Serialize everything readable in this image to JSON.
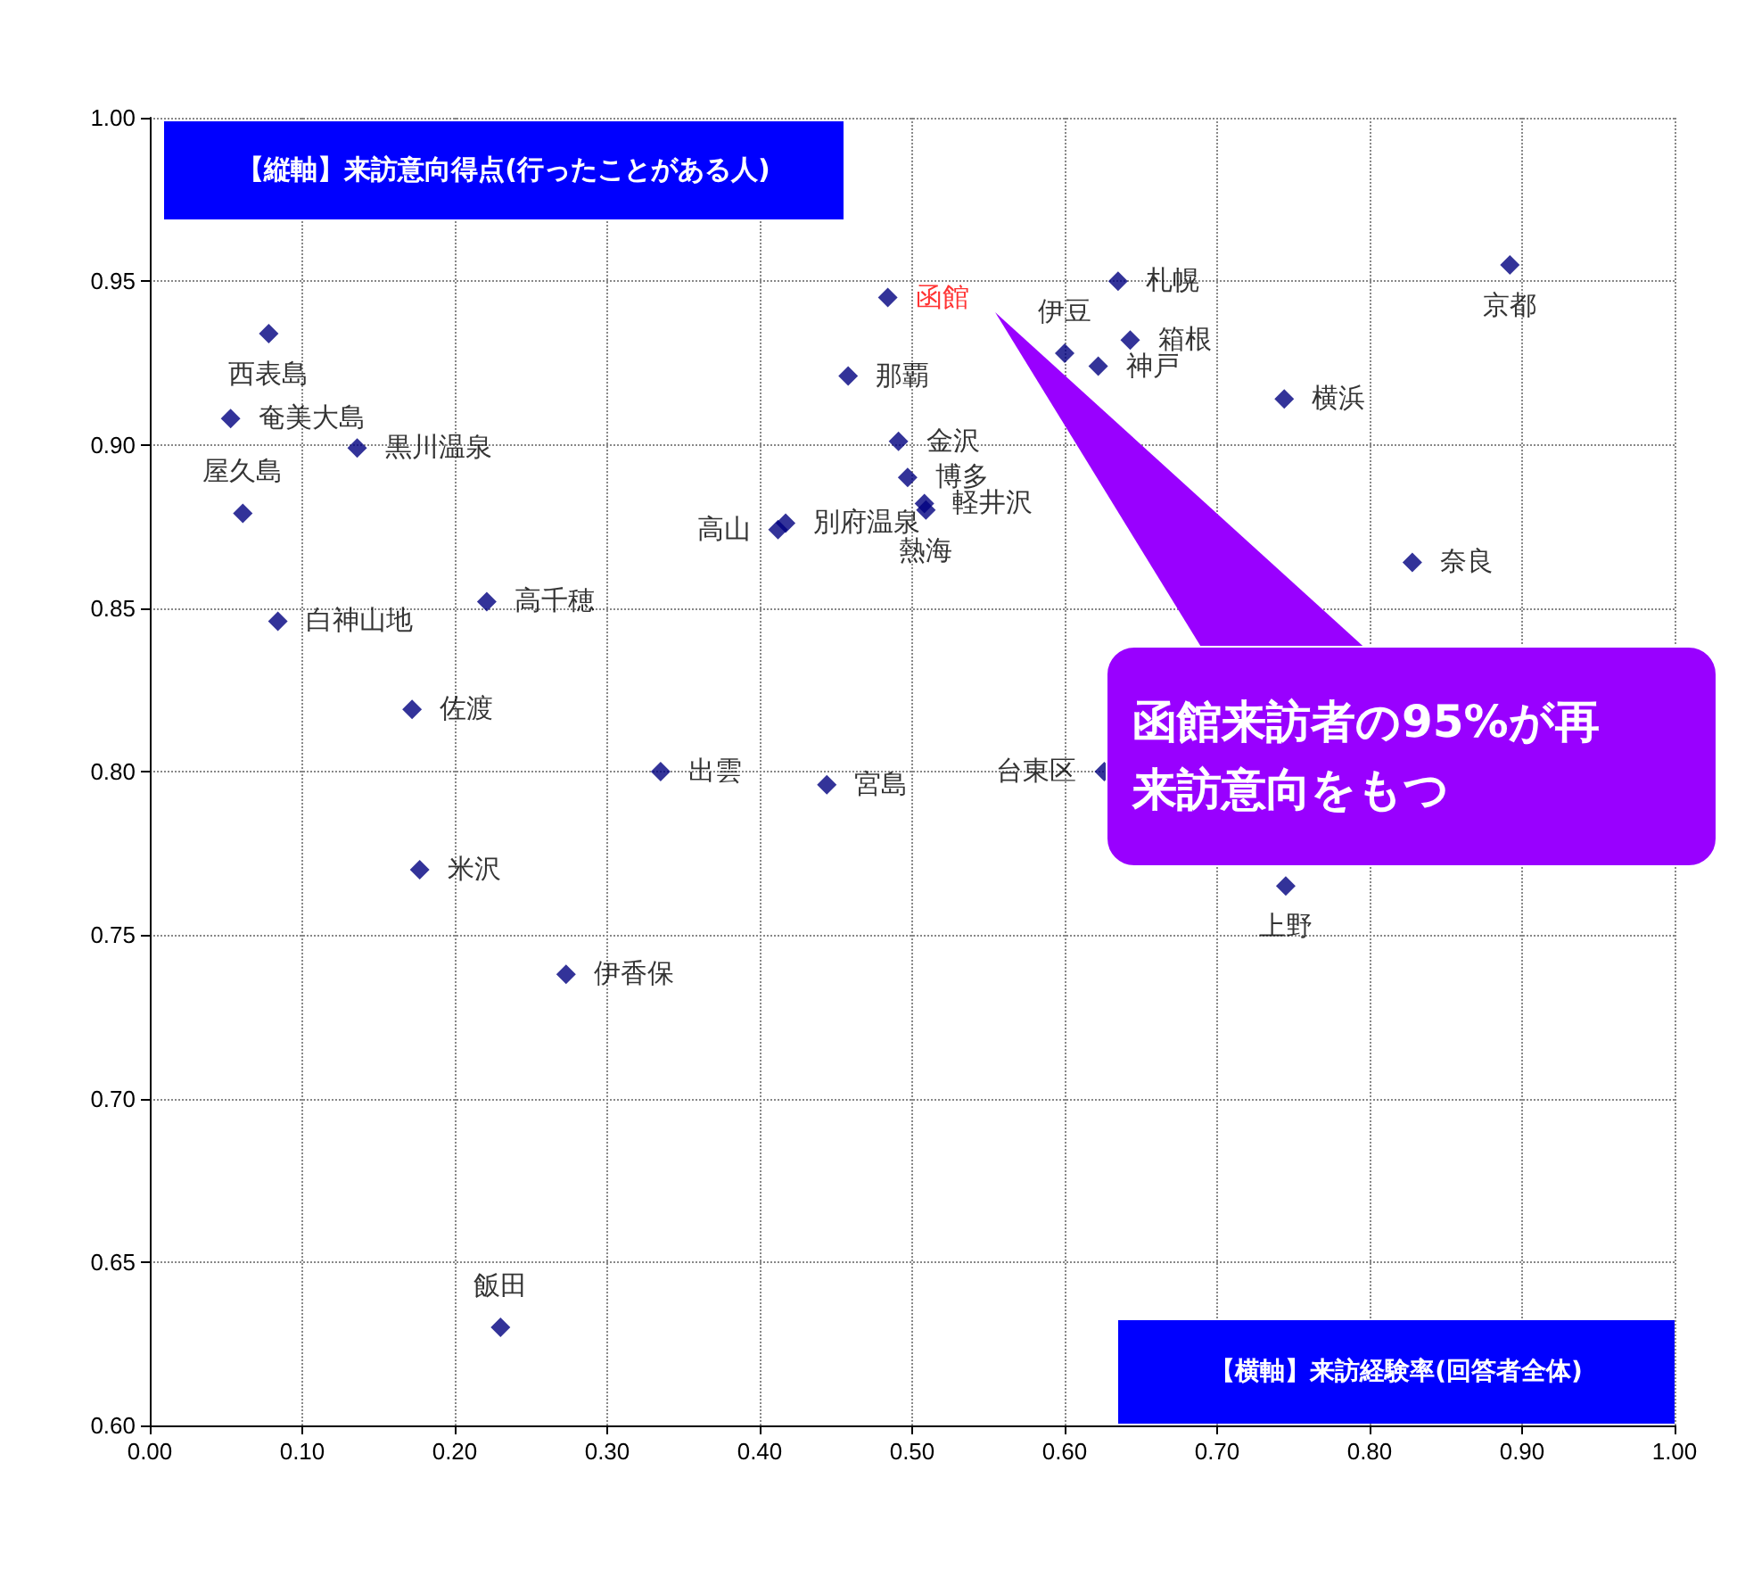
{
  "chart_data": {
    "type": "scatter",
    "xlabel": "【横軸】来訪経験率(回答者全体)",
    "ylabel": "【縦軸】来訪意向得点(行ったことがある人)",
    "x": [
      0.892,
      0.635,
      0.643,
      0.6,
      0.622,
      0.484,
      0.458,
      0.491,
      0.497,
      0.508,
      0.509,
      0.412,
      0.417,
      0.744,
      0.828,
      0.078,
      0.053,
      0.136,
      0.061,
      0.084,
      0.221,
      0.172,
      0.177,
      0.273,
      0.23,
      0.335,
      0.444,
      0.626,
      0.745
    ],
    "series": [
      {
        "color": "#000080",
        "values": [
          0.955,
          0.95,
          0.932,
          0.928,
          0.924,
          0.945,
          0.921,
          0.901,
          0.89,
          0.882,
          0.88,
          0.874,
          0.876,
          0.914,
          0.864,
          0.934,
          0.908,
          0.899,
          0.879,
          0.846,
          0.852,
          0.819,
          0.77,
          0.738,
          0.63,
          0.8,
          0.796,
          0.8,
          0.765
        ],
        "value_labels": [
          "京都",
          "札幌",
          "箱根",
          "伊豆",
          "神戸",
          "函館",
          "那覇",
          "金沢",
          "博多",
          "軽井沢",
          "熱海",
          "高山",
          "別府温泉",
          "横浜",
          "奈良",
          "西表島",
          "奄美大島",
          "黒川温泉",
          "屋久島",
          "白神山地",
          "高千穂",
          "佐渡",
          "米沢",
          "伊香保",
          "飯田",
          "出雲",
          "宮島",
          "台東区",
          "上野"
        ]
      }
    ],
    "marker": "diamond",
    "grid": true,
    "xlim": [
      0,
      1
    ],
    "xticks": [
      {
        "value": 0,
        "label": "0.00"
      },
      {
        "value": 0.1,
        "label": "0.10"
      },
      {
        "value": 0.2,
        "label": "0.20"
      },
      {
        "value": 0.3,
        "label": "0.30"
      },
      {
        "value": 0.4,
        "label": "0.40"
      },
      {
        "value": 0.5,
        "label": "0.50"
      },
      {
        "value": 0.6,
        "label": "0.60"
      },
      {
        "value": 0.7,
        "label": "0.70"
      },
      {
        "value": 0.8,
        "label": "0.80"
      },
      {
        "value": 0.9,
        "label": "0.90"
      },
      {
        "value": 1,
        "label": "1.00"
      }
    ],
    "ylim": [
      0.6,
      1
    ],
    "yticks": [
      {
        "value": 0.6,
        "label": "0.60"
      },
      {
        "value": 0.65,
        "label": "0.65"
      },
      {
        "value": 0.7,
        "label": "0.70"
      },
      {
        "value": 0.75,
        "label": "0.75"
      },
      {
        "value": 0.8,
        "label": "0.80"
      },
      {
        "value": 0.85,
        "label": "0.85"
      },
      {
        "value": 0.9,
        "label": "0.90"
      },
      {
        "value": 0.95,
        "label": "0.95"
      },
      {
        "value": 1,
        "label": "1.00"
      }
    ],
    "annotations": [
      "函館来訪者の95%が再来訪意向をもつ"
    ]
  }
}
